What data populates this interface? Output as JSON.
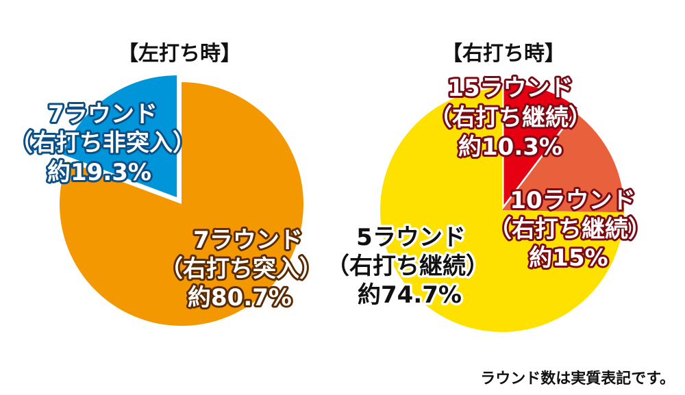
{
  "chart_data": [
    {
      "type": "pie",
      "title": "【左打ち時】",
      "categories": [
        "7ラウンド（右打ち突入）",
        "7ラウンド（右打ち非突入）"
      ],
      "values": [
        80.7,
        19.3
      ],
      "slices": [
        {
          "lines": [
            "7ラウンド",
            "（右打ち突入）",
            "約80.7%"
          ],
          "value": 80.7,
          "color": "#F39800"
        },
        {
          "lines": [
            "7ラウンド",
            "（右打ち非突入）",
            "約19.3%"
          ],
          "value": 19.3,
          "color": "#0095D9"
        }
      ]
    },
    {
      "type": "pie",
      "title": "【右打ち時】",
      "categories": [
        "5ラウンド（右打ち継続）",
        "10ラウンド（右打ち継続）",
        "15ラウンド（右打ち継続）"
      ],
      "values": [
        74.7,
        15,
        10.3
      ],
      "slices": [
        {
          "lines": [
            "5ラウンド",
            "（右打ち継続）",
            "約74.7%"
          ],
          "value": 74.7,
          "color": "#FFE100"
        },
        {
          "lines": [
            "10ラウンド",
            "（右打ち継続）",
            "約15%"
          ],
          "value": 15,
          "color": "#E8603C"
        },
        {
          "lines": [
            "15ラウンド",
            "（右打ち継続）",
            "約10.3%"
          ],
          "value": 10.3,
          "color": "#E60012"
        }
      ]
    }
  ],
  "footnote": "ラウンド数は実質表記です。"
}
